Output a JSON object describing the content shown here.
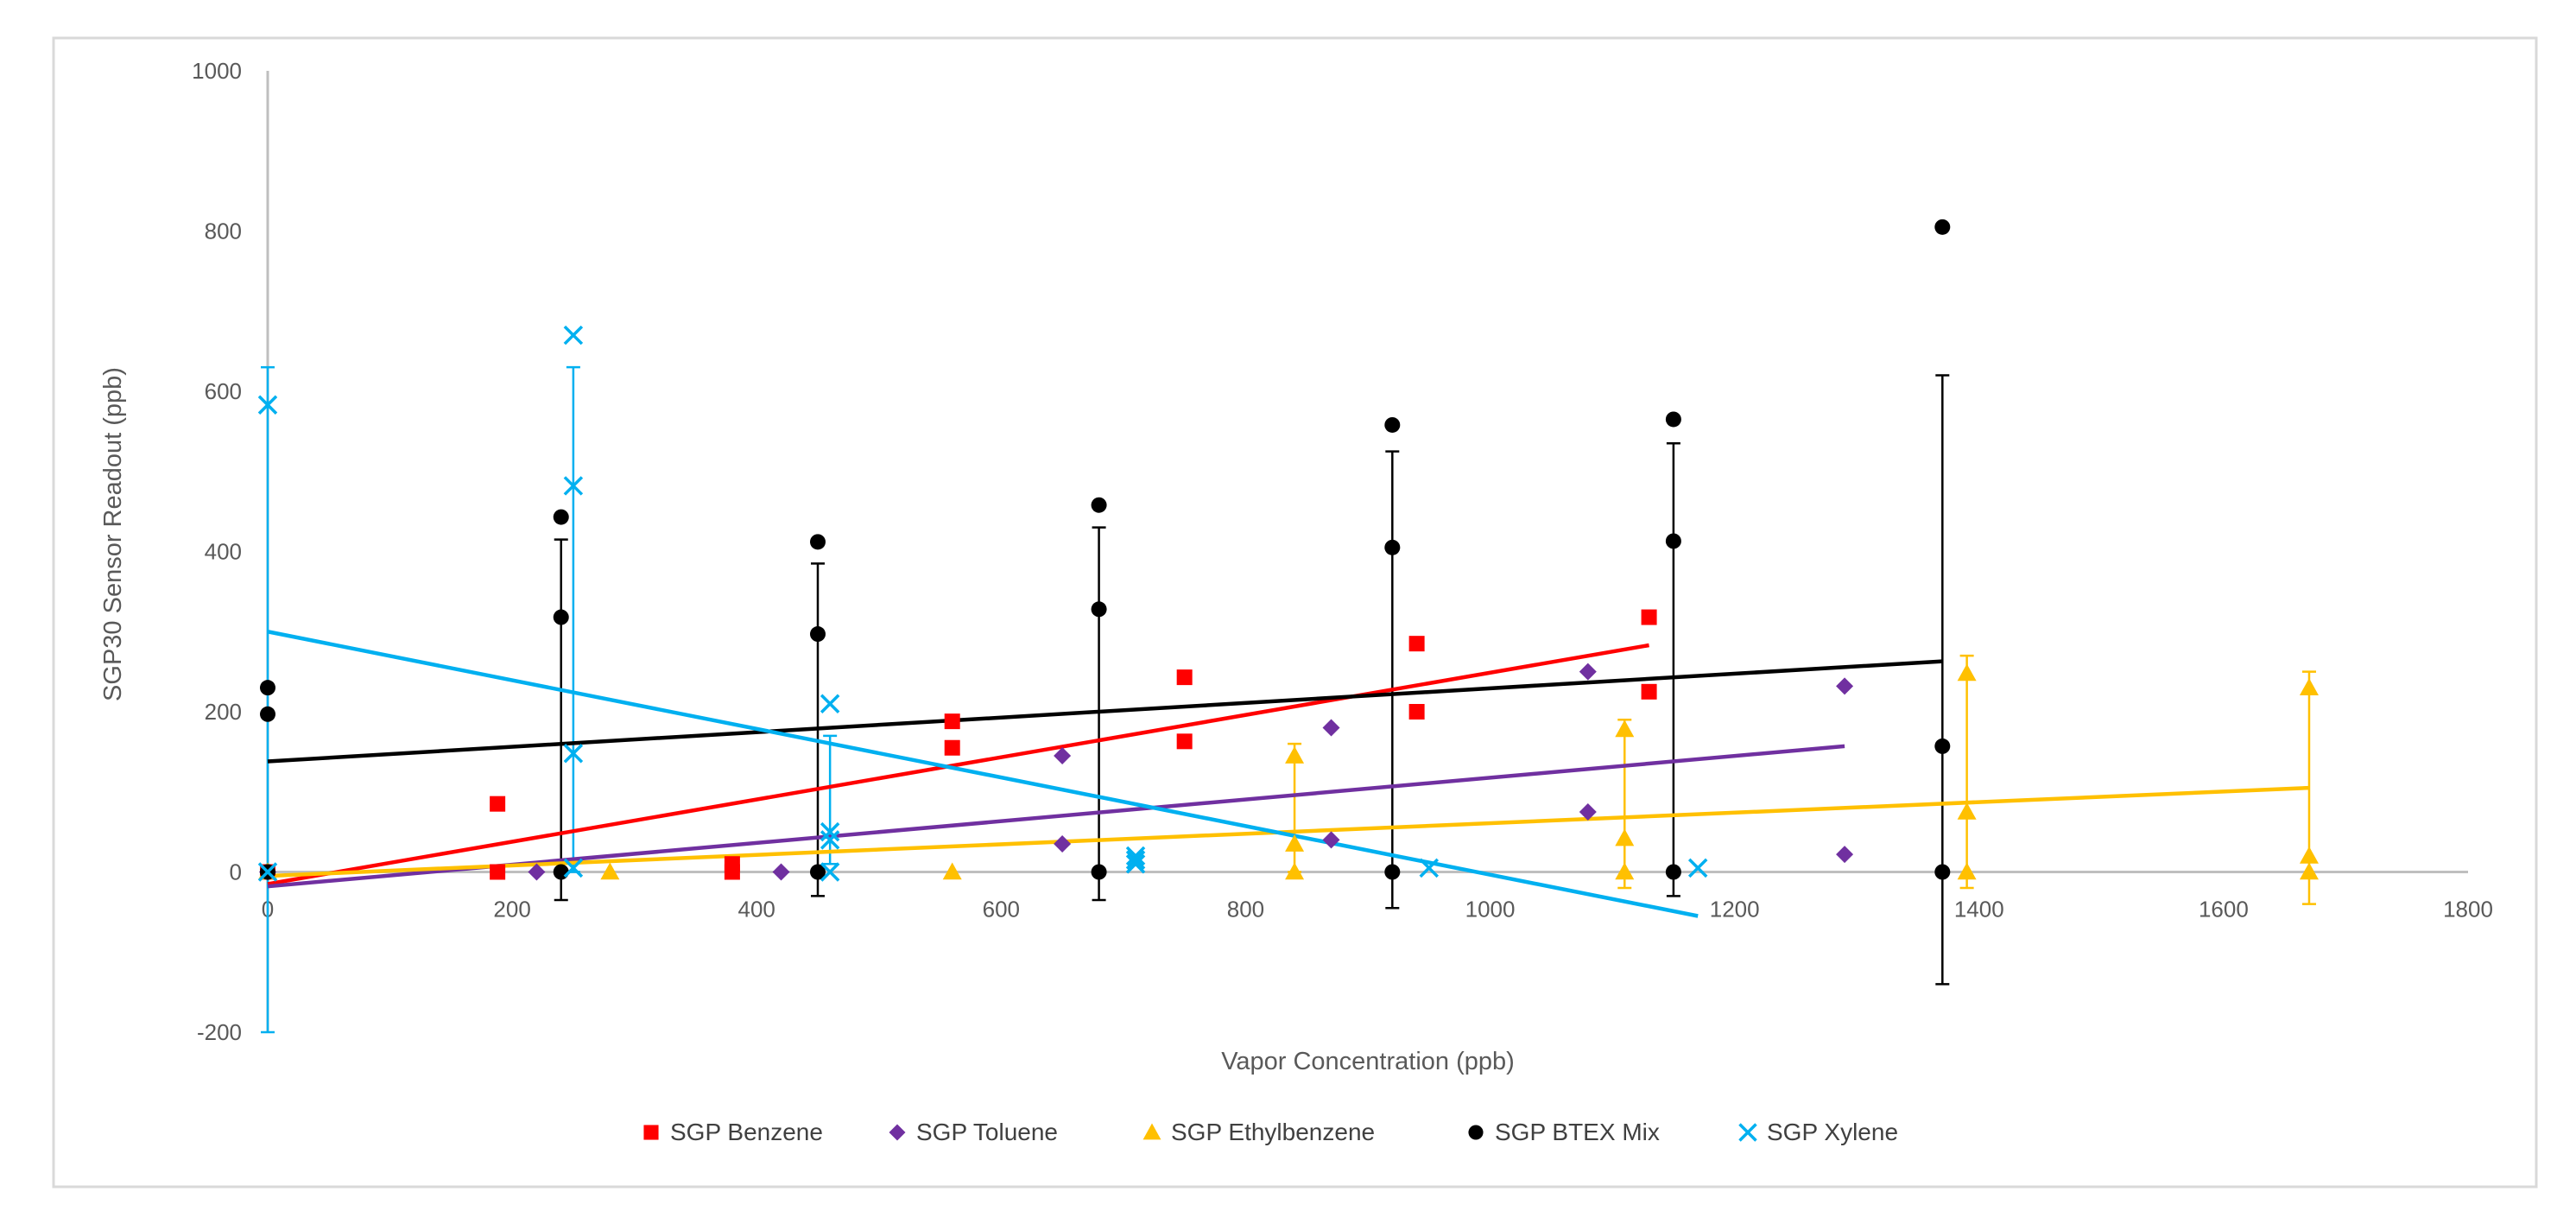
{
  "chart_data": {
    "type": "scatter",
    "title": "",
    "xlabel": "Vapor Concentration (ppb)",
    "ylabel": "SGP30 Sensor Readout (ppb)",
    "xlim": [
      0,
      1800
    ],
    "ylim": [
      -200,
      1000
    ],
    "x_ticks": [
      0,
      200,
      400,
      600,
      800,
      1000,
      1200,
      1400,
      1600,
      1800
    ],
    "y_ticks": [
      -200,
      0,
      200,
      400,
      600,
      800,
      1000
    ],
    "x_tick_labels": [
      "0",
      "200",
      "400",
      "600",
      "800",
      "1000",
      "1200",
      "1400",
      "1600",
      "1800"
    ],
    "y_tick_labels": [
      "-200",
      "0",
      "200",
      "400",
      "600",
      "800",
      "1000"
    ],
    "grid": false,
    "legend_position": "bottom",
    "series": [
      {
        "name": "SGP Benzene",
        "color": "#ff0000",
        "marker": "square",
        "points": [
          [
            0,
            0
          ],
          [
            188,
            85
          ],
          [
            188,
            0
          ],
          [
            380,
            10
          ],
          [
            380,
            0
          ],
          [
            560,
            188
          ],
          [
            560,
            155
          ],
          [
            750,
            243
          ],
          [
            750,
            163
          ],
          [
            940,
            285
          ],
          [
            940,
            200
          ],
          [
            1130,
            318
          ],
          [
            1130,
            225
          ]
        ],
        "trend": [
          [
            0,
            -15
          ],
          [
            1130,
            283
          ]
        ]
      },
      {
        "name": "SGP Toluene",
        "color": "#7030a0",
        "marker": "diamond",
        "points": [
          [
            0,
            0
          ],
          [
            220,
            0
          ],
          [
            420,
            0
          ],
          [
            650,
            35
          ],
          [
            650,
            145
          ],
          [
            870,
            40
          ],
          [
            870,
            180
          ],
          [
            1080,
            75
          ],
          [
            1080,
            250
          ],
          [
            1290,
            22
          ],
          [
            1290,
            232
          ]
        ],
        "trend": [
          [
            0,
            -18
          ],
          [
            1290,
            157
          ]
        ]
      },
      {
        "name": "SGP Ethylbenzene",
        "color": "#ffc000",
        "marker": "triangle",
        "points": [
          [
            0,
            0
          ],
          [
            280,
            0
          ],
          [
            560,
            0
          ],
          [
            840,
            0
          ],
          [
            840,
            35
          ],
          [
            840,
            145
          ],
          [
            1110,
            0
          ],
          [
            1110,
            42
          ],
          [
            1110,
            178
          ],
          [
            1390,
            0
          ],
          [
            1390,
            75
          ],
          [
            1390,
            248
          ],
          [
            1670,
            0
          ],
          [
            1670,
            20
          ],
          [
            1670,
            230
          ]
        ],
        "error_bars": [
          [
            840,
            0,
            160
          ],
          [
            1110,
            -20,
            190
          ],
          [
            1390,
            -20,
            270
          ],
          [
            1670,
            -40,
            250
          ]
        ],
        "trend": [
          [
            0,
            -5
          ],
          [
            1670,
            105
          ]
        ]
      },
      {
        "name": "SGP BTEX Mix",
        "color": "#000000",
        "marker": "circle",
        "points": [
          [
            0,
            0
          ],
          [
            0,
            197
          ],
          [
            0,
            230
          ],
          [
            240,
            0
          ],
          [
            240,
            318
          ],
          [
            240,
            443
          ],
          [
            450,
            0
          ],
          [
            450,
            297
          ],
          [
            450,
            412
          ],
          [
            680,
            0
          ],
          [
            680,
            328
          ],
          [
            680,
            458
          ],
          [
            920,
            0
          ],
          [
            920,
            405
          ],
          [
            920,
            558
          ],
          [
            1150,
            0
          ],
          [
            1150,
            413
          ],
          [
            1150,
            565
          ],
          [
            1370,
            0
          ],
          [
            1370,
            157
          ],
          [
            1370,
            805
          ]
        ],
        "error_bars": [
          [
            240,
            -35,
            415
          ],
          [
            450,
            -30,
            385
          ],
          [
            680,
            -35,
            430
          ],
          [
            920,
            -45,
            525
          ],
          [
            1150,
            -30,
            535
          ],
          [
            1370,
            -140,
            620
          ]
        ],
        "trend": [
          [
            0,
            138
          ],
          [
            1370,
            263
          ]
        ]
      },
      {
        "name": "SGP Xylene",
        "color": "#00b0f0",
        "marker": "x",
        "points": [
          [
            0,
            0
          ],
          [
            0,
            583
          ],
          [
            250,
            5
          ],
          [
            250,
            148
          ],
          [
            250,
            482
          ],
          [
            250,
            670
          ],
          [
            460,
            0
          ],
          [
            460,
            50
          ],
          [
            460,
            40
          ],
          [
            460,
            210
          ],
          [
            710,
            10
          ],
          [
            710,
            15
          ],
          [
            710,
            20
          ],
          [
            950,
            5
          ],
          [
            1170,
            5
          ]
        ],
        "error_bars": [
          [
            0,
            -200,
            630
          ],
          [
            250,
            0,
            630
          ],
          [
            460,
            10,
            170
          ]
        ],
        "trend": [
          [
            0,
            300
          ],
          [
            1170,
            -55
          ]
        ]
      }
    ]
  }
}
